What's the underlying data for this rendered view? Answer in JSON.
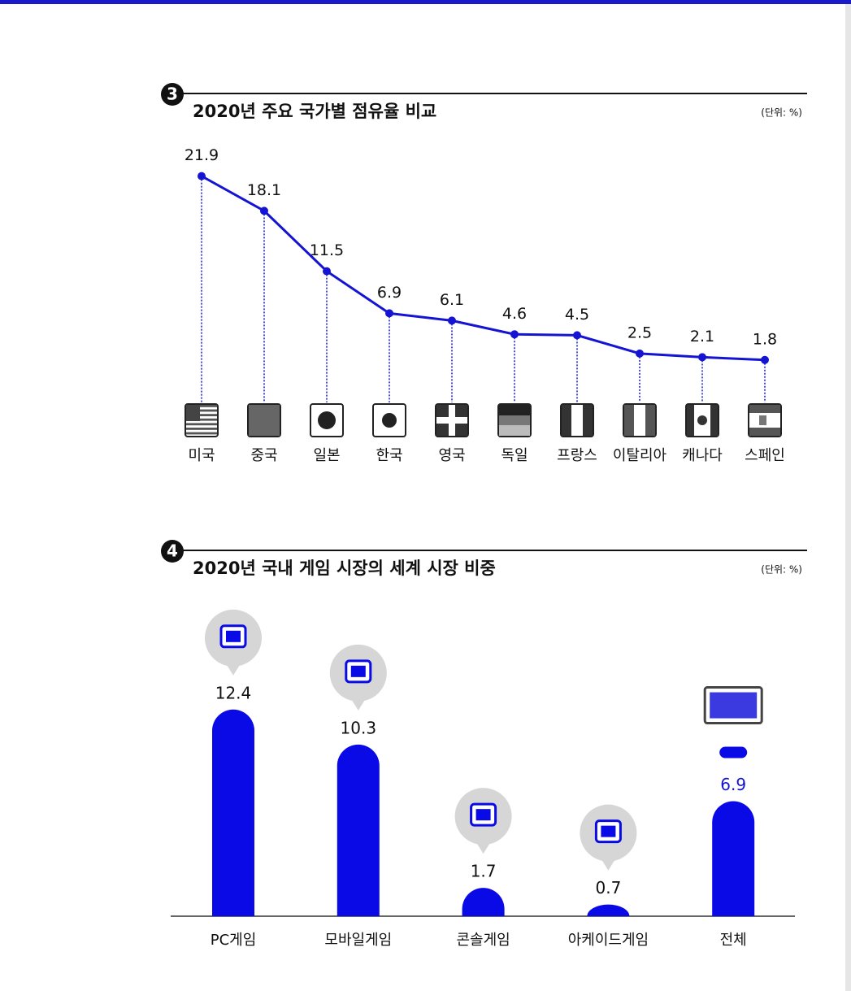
{
  "chart_data": [
    {
      "type": "line",
      "number": "3",
      "title": "2020년 주요 국가별 점유율 비교",
      "unit": "(단위: %)",
      "categories": [
        "미국",
        "중국",
        "일본",
        "한국",
        "영국",
        "독일",
        "프랑스",
        "이탈리아",
        "캐나다",
        "스페인"
      ],
      "values": [
        21.9,
        18.1,
        11.5,
        6.9,
        6.1,
        4.6,
        4.5,
        2.5,
        2.1,
        1.8
      ],
      "color": "#1414d2",
      "ylim": [
        0,
        24
      ]
    },
    {
      "type": "bar",
      "number": "4",
      "title": "2020년 국내 게임 시장의 세계 시장 비중",
      "unit": "(단위: %)",
      "categories": [
        "PC게임",
        "모바일게임",
        "콘솔게임",
        "아케이드게임",
        "전체"
      ],
      "values": [
        12.4,
        10.3,
        1.7,
        0.7,
        6.9
      ],
      "color": "#0a0ae6",
      "value_label_colors": [
        "#111111",
        "#111111",
        "#111111",
        "#111111",
        "#1414d2"
      ],
      "ylim": [
        0,
        15
      ]
    }
  ]
}
